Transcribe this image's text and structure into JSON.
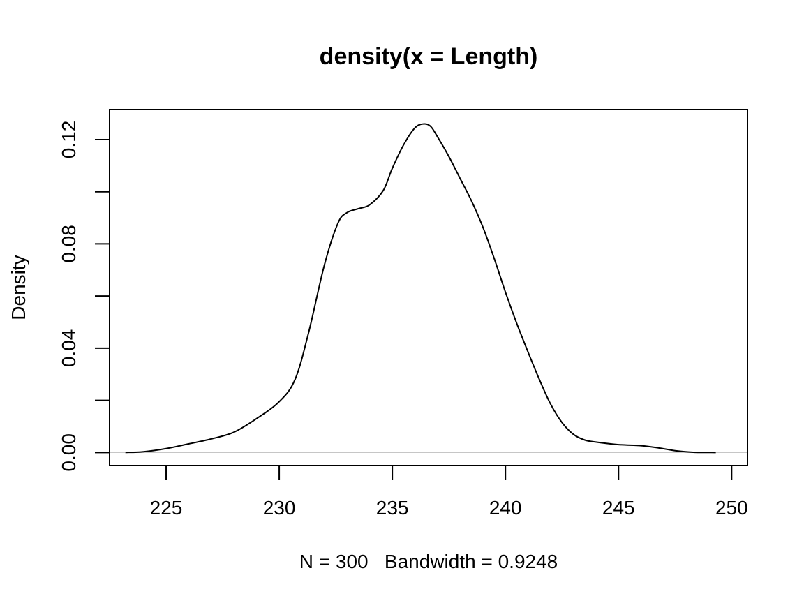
{
  "chart_data": {
    "type": "line",
    "title": "density(x = Length)",
    "xlabel": "N = 300   Bandwidth = 0.9248",
    "ylabel": "Density",
    "xlim": [
      222.5,
      250.7
    ],
    "ylim": [
      -0.005,
      0.1315
    ],
    "x_ticks": [
      225,
      230,
      235,
      240,
      245,
      250
    ],
    "x_tick_labels": [
      "225",
      "230",
      "235",
      "240",
      "245",
      "250"
    ],
    "y_ticks": [
      0.0,
      0.02,
      0.04,
      0.06,
      0.08,
      0.1,
      0.12
    ],
    "y_tick_labels": [
      "0.00",
      "",
      "0.04",
      "",
      "0.08",
      "",
      "0.12"
    ],
    "grid": false,
    "zero_line": true,
    "series": [
      {
        "x": [
          223.2,
          224.0,
          225.0,
          226.0,
          227.0,
          228.0,
          229.0,
          230.0,
          230.7,
          231.3,
          232.0,
          232.6,
          233.0,
          233.5,
          234.0,
          234.6,
          235.0,
          235.5,
          236.0,
          236.4,
          236.7,
          237.0,
          237.5,
          238.0,
          238.5,
          239.0,
          239.5,
          240.0,
          240.5,
          241.0,
          241.5,
          242.0,
          242.5,
          243.0,
          243.5,
          244.0,
          245.0,
          246.0,
          246.8,
          247.5,
          248.3,
          249.3
        ],
        "y": [
          0.0,
          0.0003,
          0.0015,
          0.0033,
          0.0052,
          0.0078,
          0.013,
          0.0195,
          0.028,
          0.046,
          0.072,
          0.088,
          0.092,
          0.0935,
          0.095,
          0.1005,
          0.109,
          0.118,
          0.1245,
          0.126,
          0.125,
          0.121,
          0.1135,
          0.105,
          0.0965,
          0.0865,
          0.0745,
          0.0615,
          0.0495,
          0.0385,
          0.028,
          0.0185,
          0.0115,
          0.007,
          0.0048,
          0.004,
          0.003,
          0.0026,
          0.0017,
          0.0007,
          0.0001,
          0.0
        ]
      }
    ]
  }
}
